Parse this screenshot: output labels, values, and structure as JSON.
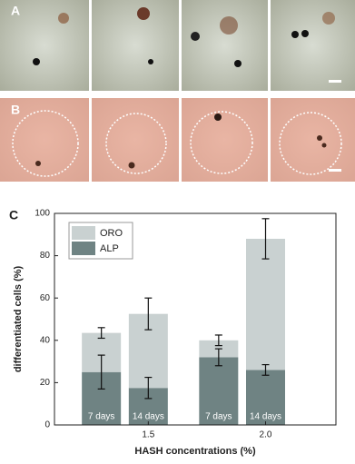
{
  "panels": [
    {
      "label": "A"
    },
    {
      "label": "B"
    }
  ],
  "chart_data": {
    "type": "stacked_bar",
    "panel_label": "C",
    "xlabel": "HASH concentrations (%)",
    "ylabel": "differentiated cells (%)",
    "x": [
      1.3,
      1.5,
      1.8,
      2.0
    ],
    "categories": [
      "7 days",
      "14 days",
      "7 days",
      "14 days"
    ],
    "series": [
      {
        "name": "ORO",
        "color": "#c9d1d1",
        "values": [
          18.5,
          35,
          8,
          62
        ],
        "errors": [
          2.5,
          7.5,
          2.5,
          9.5
        ]
      },
      {
        "name": "ALP",
        "color": "#6f8383",
        "values": [
          25,
          17.5,
          32,
          26
        ],
        "errors": [
          8,
          5,
          4,
          2.5
        ]
      }
    ],
    "xlim": [
      1.1,
      2.3
    ],
    "xticks": [
      1.5,
      {
        "value": 2,
        "label": "2.0"
      }
    ],
    "ylim": [
      0,
      100
    ],
    "yticks": [
      0,
      20,
      40,
      60,
      80,
      100
    ],
    "legend": "upper left"
  }
}
